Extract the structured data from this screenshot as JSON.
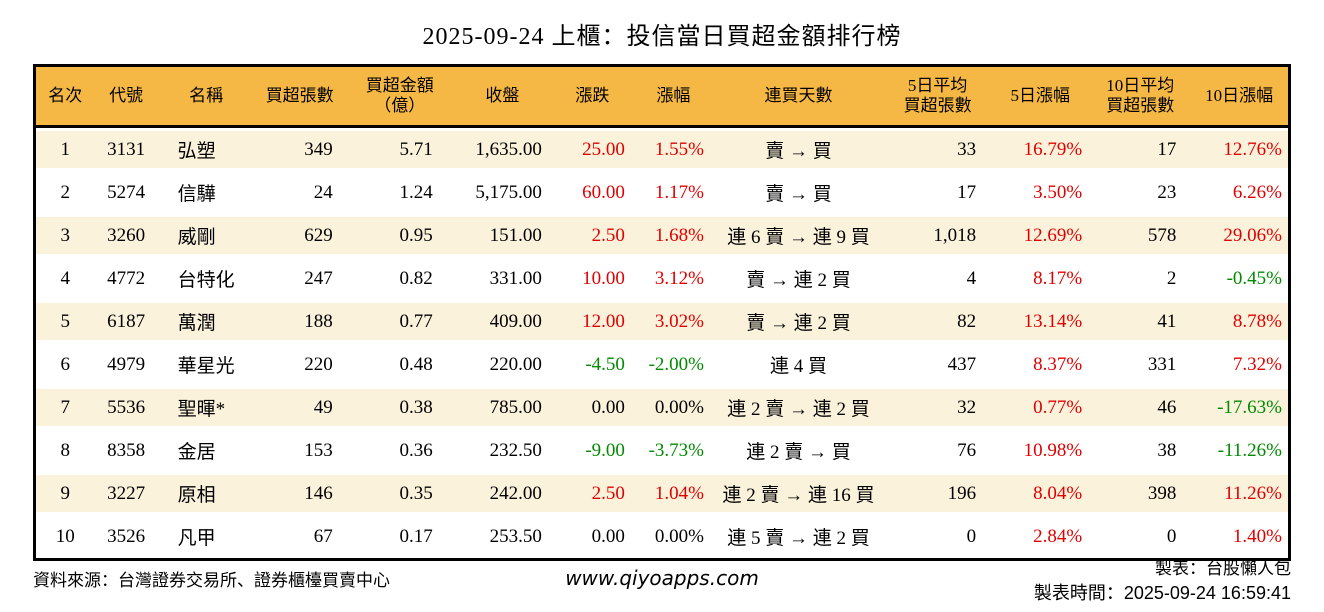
{
  "title": "2025-09-24 上櫃：投信當日買超金額排行榜",
  "colors": {
    "header_bg": "#F6B845",
    "row_alt_bg": "#FBF2DC",
    "up_red": "#E00000",
    "down_green": "#008A00",
    "border": "#000000"
  },
  "table": {
    "columns": [
      "名次",
      "代號",
      "名稱",
      "買超張數",
      "買超金額\n（億）",
      "收盤",
      "漲跌",
      "漲幅",
      "連買天數",
      "5日平均\n買超張數",
      "5日漲幅",
      "10日平均\n買超張數",
      "10日漲幅"
    ],
    "rows": [
      [
        "1",
        "3131",
        "弘塑",
        "349",
        "5.71",
        "1,635.00",
        "25.00",
        "1.55%",
        "賣 → 買",
        "33",
        "16.79%",
        "17",
        "12.76%"
      ],
      [
        "2",
        "5274",
        "信驊",
        "24",
        "1.24",
        "5,175.00",
        "60.00",
        "1.17%",
        "賣 → 買",
        "17",
        "3.50%",
        "23",
        "6.26%"
      ],
      [
        "3",
        "3260",
        "威剛",
        "629",
        "0.95",
        "151.00",
        "2.50",
        "1.68%",
        "連 6 賣 → 連 9 買",
        "1,018",
        "12.69%",
        "578",
        "29.06%"
      ],
      [
        "4",
        "4772",
        "台特化",
        "247",
        "0.82",
        "331.00",
        "10.00",
        "3.12%",
        "賣 → 連 2 買",
        "4",
        "8.17%",
        "2",
        "-0.45%"
      ],
      [
        "5",
        "6187",
        "萬潤",
        "188",
        "0.77",
        "409.00",
        "12.00",
        "3.02%",
        "賣 → 連 2 買",
        "82",
        "13.14%",
        "41",
        "8.78%"
      ],
      [
        "6",
        "4979",
        "華星光",
        "220",
        "0.48",
        "220.00",
        "-4.50",
        "-2.00%",
        "連 4 買",
        "437",
        "8.37%",
        "331",
        "7.32%"
      ],
      [
        "7",
        "5536",
        "聖暉*",
        "49",
        "0.38",
        "785.00",
        "0.00",
        "0.00%",
        "連 2 賣 → 連 2 買",
        "32",
        "0.77%",
        "46",
        "-17.63%"
      ],
      [
        "8",
        "8358",
        "金居",
        "153",
        "0.36",
        "232.50",
        "-9.00",
        "-3.73%",
        "連 2 賣 → 買",
        "76",
        "10.98%",
        "38",
        "-11.26%"
      ],
      [
        "9",
        "3227",
        "原相",
        "146",
        "0.35",
        "242.00",
        "2.50",
        "1.04%",
        "連 2 賣 → 連 16 買",
        "196",
        "8.04%",
        "398",
        "11.26%"
      ],
      [
        "10",
        "3526",
        "凡甲",
        "67",
        "0.17",
        "253.50",
        "0.00",
        "0.00%",
        "連 5 賣 → 連 2 買",
        "0",
        "2.84%",
        "0",
        "1.40%"
      ]
    ]
  },
  "footer": {
    "source": "資料來源：台灣證券交易所、證券櫃檯買賣中心",
    "website": "www.qiyoapps.com",
    "author": "製表：台股懶人包",
    "timestamp": "製表時間：2025-09-24 16:59:41"
  }
}
